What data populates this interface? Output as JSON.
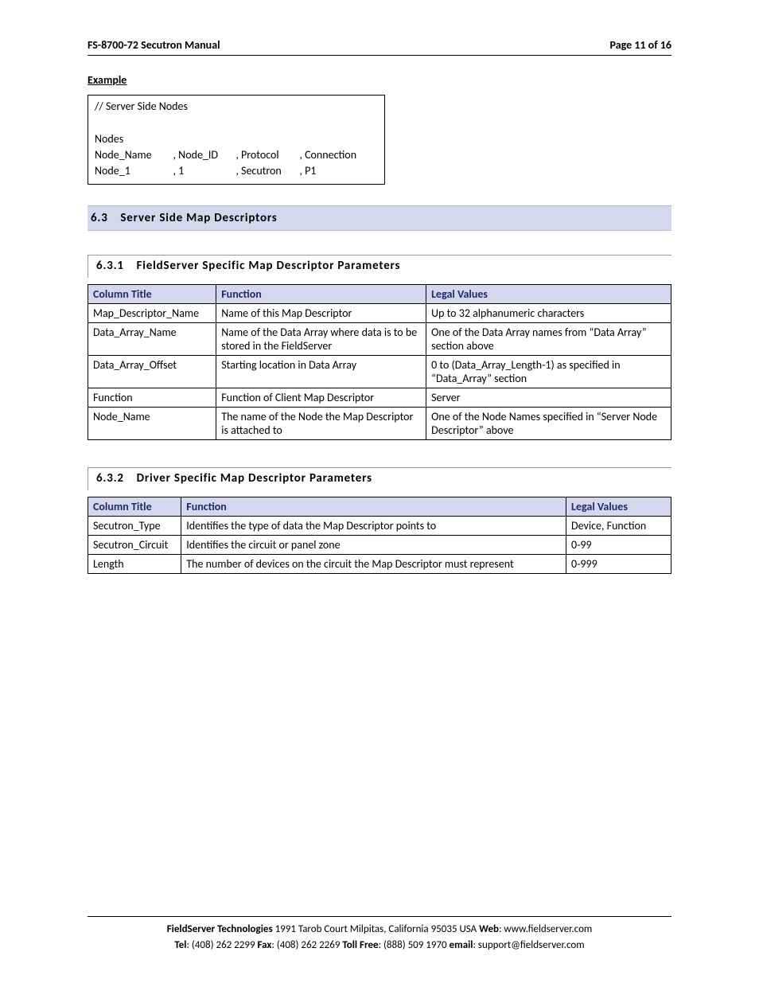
{
  "header": {
    "left": "FS-8700-72 Secutron Manual",
    "right": "Page 11 of 16"
  },
  "example_label": "Example",
  "code_box": {
    "comment": "//     Server Side Nodes",
    "blank": " ",
    "r1": "Nodes",
    "r2c1": "Node_Name",
    "r2c2": ", Node_ID",
    "r2c3": ", Protocol",
    "r2c4": ", Connection",
    "r3c1": "Node_1",
    "r3c2": ", 1",
    "r3c3": ", Secutron",
    "r3c4": ", P1"
  },
  "section_63": "6.3 Server Side Map Descriptors",
  "sub_631": {
    "title": "6.3.1 FieldServer Specific Map Descriptor Parameters",
    "header": {
      "c1": "Column Title",
      "c2": "Function",
      "c3": "Legal Values"
    },
    "rows": [
      {
        "c1": "Map_Descriptor_Name",
        "c2": "Name of this Map Descriptor",
        "c3": "Up to 32 alphanumeric characters"
      },
      {
        "c1": "Data_Array_Name",
        "c2": "Name of the Data Array where data is to be stored in the FieldServer",
        "c3": "One of the Data Array names from “Data Array” section above"
      },
      {
        "c1": "Data_Array_Offset",
        "c2": "Starting location in Data Array",
        "c3": "0 to (Data_Array_Length-1) as specified in “Data_Array” section"
      },
      {
        "c1": "Function",
        "c2": "Function of Client Map Descriptor",
        "c3": "Server"
      },
      {
        "c1": "Node_Name",
        "c2": "The name of the Node the Map Descriptor is attached to",
        "c3": "One of the Node Names specified in “Server Node Descriptor” above"
      }
    ],
    "col_widths": [
      "22%",
      "36%",
      "42%"
    ]
  },
  "sub_632": {
    "title": "6.3.2 Driver Specific Map Descriptor Parameters",
    "header": {
      "c1": "Column Title",
      "c2": "Function",
      "c3": "Legal Values"
    },
    "rows": [
      {
        "c1": "Secutron_Type",
        "c2": "Identifies the type of data the Map Descriptor points to",
        "c3": "Device, Function"
      },
      {
        "c1": "Secutron_Circuit",
        "c2": "Identifies the circuit or panel zone",
        "c3": "0-99"
      },
      {
        "c1": "Length",
        "c2": "The number of devices on the circuit the Map Descriptor must represent",
        "c3": "0-999"
      }
    ],
    "col_widths": [
      "16%",
      "66%",
      "18%"
    ]
  },
  "footer": {
    "l1_b1": "FieldServer Technologies",
    "l1_t1": " 1991 Tarob Court Milpitas, California 95035 USA   ",
    "l1_b2": "Web",
    "l1_t2": ": www.fieldserver.com",
    "l2_b1": "Tel",
    "l2_t1": ": (408) 262 2299   ",
    "l2_b2": "Fax",
    "l2_t2": ": (408) 262 2269   ",
    "l2_b3": "Toll Free",
    "l2_t3": ": (888) 509 1970   ",
    "l2_b4": "email",
    "l2_t4": ": support@fieldserver.com"
  }
}
